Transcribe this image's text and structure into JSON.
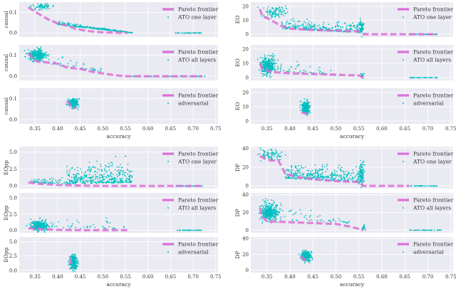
{
  "chart_data": [
    {
      "type": "scatter",
      "group": "causal",
      "ylabel": "causal",
      "xlabel": "",
      "ylim": [
        -0.02,
        0.15
      ],
      "yticks": [
        "0.0",
        "0.1"
      ],
      "ytickvals": [
        0,
        0.1
      ],
      "legend": [
        "Pareto frontier",
        "ATO one layer"
      ],
      "frontier": [
        [
          0.335,
          0.125
        ],
        [
          0.345,
          0.11
        ],
        [
          0.36,
          0.09
        ],
        [
          0.38,
          0.065
        ],
        [
          0.4,
          0.047
        ],
        [
          0.42,
          0.035
        ],
        [
          0.44,
          0.02
        ],
        [
          0.46,
          0.012
        ],
        [
          0.48,
          0.006
        ],
        [
          0.5,
          0.003
        ],
        [
          0.53,
          0.001
        ],
        [
          0.555,
          0
        ]
      ],
      "clusters": [
        {
          "cx": 0.365,
          "cy": 0.125,
          "sx": 0.012,
          "sy": 0.008,
          "n": 60
        },
        {
          "x0": 0.4,
          "x1": 0.565,
          "ylo0": 0.04,
          "yhi0": 0.06,
          "ylo1": 0,
          "yhi1": 0.003,
          "n": 260
        },
        {
          "x0": 0.66,
          "x1": 0.72,
          "ylo0": -0.001,
          "yhi0": 0.001,
          "ylo1": -0.001,
          "yhi1": 0.001,
          "n": 40
        }
      ]
    },
    {
      "type": "scatter",
      "group": "causal",
      "ylabel": "causal",
      "xlabel": "",
      "ylim": [
        -0.02,
        0.15
      ],
      "yticks": [
        "0.0",
        "0.1"
      ],
      "ytickvals": [
        0,
        0.1
      ],
      "legend": [
        "Pareto frontier",
        "ATO all layers"
      ],
      "frontier": [
        [
          0.335,
          0.11
        ],
        [
          0.345,
          0.085
        ],
        [
          0.355,
          0.07
        ],
        [
          0.38,
          0.065
        ],
        [
          0.4,
          0.06
        ],
        [
          0.42,
          0.042
        ],
        [
          0.45,
          0.035
        ],
        [
          0.48,
          0.02
        ],
        [
          0.52,
          0.007
        ],
        [
          0.55,
          0
        ],
        [
          0.72,
          0
        ]
      ],
      "clusters": [
        {
          "cx": 0.355,
          "cy": 0.1,
          "sx": 0.009,
          "sy": 0.013,
          "n": 350
        },
        {
          "x0": 0.38,
          "x1": 0.5,
          "ylo0": 0.06,
          "yhi0": 0.12,
          "ylo1": 0.02,
          "yhi1": 0.04,
          "n": 40
        },
        {
          "x0": 0.56,
          "x1": 0.73,
          "ylo0": -0.001,
          "yhi0": 0.001,
          "ylo1": -0.001,
          "yhi1": 0.001,
          "n": 40
        }
      ]
    },
    {
      "type": "scatter",
      "group": "causal",
      "ylabel": "causal",
      "xlabel": "accuracy",
      "ylim": [
        -0.02,
        0.15
      ],
      "yticks": [
        "0.0",
        "0.1"
      ],
      "ytickvals": [
        0,
        0.1
      ],
      "legend": [
        "Pareto frontier",
        "adversarial"
      ],
      "frontier": [
        [
          0.42,
          0.09
        ],
        [
          0.43,
          0.068
        ],
        [
          0.44,
          0.052
        ]
      ],
      "clusters": [
        {
          "cx": 0.435,
          "cy": 0.08,
          "sx": 0.005,
          "sy": 0.01,
          "n": 300
        }
      ]
    },
    {
      "type": "scatter",
      "group": "EO",
      "ylabel": "EO",
      "xlabel": "",
      "ylim": [
        -2,
        23
      ],
      "yticks": [
        "0",
        "10",
        "20"
      ],
      "ytickvals": [
        0,
        10,
        20
      ],
      "legend": [
        "Pareto frontier",
        "ATO one layer"
      ],
      "frontier": [
        [
          0.335,
          18
        ],
        [
          0.34,
          13
        ],
        [
          0.36,
          10
        ],
        [
          0.38,
          6
        ],
        [
          0.4,
          4
        ],
        [
          0.45,
          3
        ],
        [
          0.5,
          2.5
        ],
        [
          0.55,
          2
        ],
        [
          0.56,
          0
        ],
        [
          0.72,
          0
        ]
      ],
      "clusters": [
        {
          "cx": 0.365,
          "cy": 16,
          "sx": 0.012,
          "sy": 2.5,
          "n": 90
        },
        {
          "x0": 0.38,
          "x1": 0.56,
          "ylo0": 4,
          "yhi0": 12,
          "ylo1": 1,
          "yhi1": 9,
          "n": 300
        },
        {
          "cx": 0.555,
          "cy": 5,
          "sx": 0.003,
          "sy": 3,
          "n": 60
        },
        {
          "x0": 0.66,
          "x1": 0.72,
          "ylo0": -0.1,
          "yhi0": 0.1,
          "ylo1": -0.1,
          "yhi1": 0.1,
          "n": 40
        }
      ]
    },
    {
      "type": "scatter",
      "group": "EO",
      "ylabel": "EO",
      "xlabel": "",
      "ylim": [
        -2,
        23
      ],
      "yticks": [
        "0",
        "10",
        "20"
      ],
      "ytickvals": [
        0,
        10,
        20
      ],
      "legend": [
        "Pareto frontier",
        "ATO all layers"
      ],
      "frontier": [
        [
          0.335,
          10
        ],
        [
          0.34,
          6
        ],
        [
          0.36,
          4
        ],
        [
          0.4,
          3
        ],
        [
          0.45,
          2.5
        ],
        [
          0.5,
          2
        ],
        [
          0.55,
          1.5
        ],
        [
          0.56,
          0
        ]
      ],
      "clusters": [
        {
          "cx": 0.352,
          "cy": 8,
          "sx": 0.008,
          "sy": 3,
          "n": 350
        },
        {
          "x0": 0.37,
          "x1": 0.5,
          "ylo0": 4,
          "yhi0": 16,
          "ylo1": 2,
          "yhi1": 6,
          "n": 50
        },
        {
          "cx": 0.558,
          "cy": 1,
          "sx": 0.002,
          "sy": 1,
          "n": 20
        },
        {
          "x0": 0.66,
          "x1": 0.72,
          "ylo0": -0.1,
          "yhi0": 0.1,
          "ylo1": -0.1,
          "yhi1": 0.1,
          "n": 40
        }
      ]
    },
    {
      "type": "scatter",
      "group": "EO",
      "ylabel": "EO",
      "xlabel": "accuracy",
      "ylim": [
        -2,
        23
      ],
      "yticks": [
        "0",
        "10",
        "20"
      ],
      "ytickvals": [
        0,
        10,
        20
      ],
      "legend": [
        "Pareto frontier",
        "adversarial"
      ],
      "frontier": [
        [
          0.425,
          6
        ],
        [
          0.44,
          5
        ]
      ],
      "clusters": [
        {
          "cx": 0.435,
          "cy": 9,
          "sx": 0.004,
          "sy": 2,
          "n": 300
        }
      ]
    },
    {
      "type": "scatter",
      "group": "EOpp",
      "ylabel": "EOpp",
      "xlabel": "",
      "ylim": [
        -0.4,
        5.8
      ],
      "yticks": [
        "0.0",
        "2.5",
        "5.0"
      ],
      "ytickvals": [
        0,
        2.5,
        5
      ],
      "legend": [
        "Pareto frontier",
        "ATO one layer"
      ],
      "frontier": [
        [
          0.335,
          0.5
        ],
        [
          0.36,
          0.3
        ],
        [
          0.4,
          0.15
        ],
        [
          0.45,
          0.05
        ],
        [
          0.5,
          0
        ],
        [
          0.72,
          0
        ]
      ],
      "clusters": [
        {
          "x0": 0.34,
          "x1": 0.42,
          "ylo0": 0.5,
          "yhi0": 1,
          "ylo1": 0.3,
          "yhi1": 2,
          "n": 60
        },
        {
          "x0": 0.42,
          "x1": 0.565,
          "ylo0": 0.3,
          "yhi0": 3.5,
          "ylo1": 0.5,
          "yhi1": 4.8,
          "n": 380
        },
        {
          "x0": 0.66,
          "x1": 0.72,
          "ylo0": -0.02,
          "yhi0": 0.02,
          "ylo1": -0.02,
          "yhi1": 0.02,
          "n": 40
        }
      ]
    },
    {
      "type": "scatter",
      "group": "EOpp",
      "ylabel": "EOpp",
      "xlabel": "",
      "ylim": [
        -0.4,
        5.8
      ],
      "yticks": [
        "0.0",
        "2.5",
        "5.0"
      ],
      "ytickvals": [
        0,
        2.5,
        5
      ],
      "legend": [
        "Pareto frontier",
        "ATO all layers"
      ],
      "frontier": [
        [
          0.335,
          0.3
        ],
        [
          0.36,
          0.15
        ],
        [
          0.4,
          0.05
        ],
        [
          0.45,
          0
        ],
        [
          0.56,
          0
        ]
      ],
      "clusters": [
        {
          "cx": 0.36,
          "cy": 0.7,
          "sx": 0.01,
          "sy": 0.4,
          "n": 300
        },
        {
          "x0": 0.38,
          "x1": 0.55,
          "ylo0": 0.3,
          "yhi0": 2,
          "ylo1": 0.2,
          "yhi1": 2.5,
          "n": 40
        },
        {
          "x0": 0.66,
          "x1": 0.72,
          "ylo0": -0.02,
          "yhi0": 0.02,
          "ylo1": -0.02,
          "yhi1": 0.02,
          "n": 40
        }
      ]
    },
    {
      "type": "scatter",
      "group": "EOpp",
      "ylabel": "EOpp",
      "xlabel": "accuracy",
      "ylim": [
        -0.4,
        5.8
      ],
      "yticks": [
        "0.0",
        "2.5",
        "5.0"
      ],
      "ytickvals": [
        0,
        2.5,
        5
      ],
      "legend": [
        "Pareto frontier",
        "adversarial"
      ],
      "frontier": [
        [
          0.428,
          2.2
        ],
        [
          0.43,
          1.2
        ],
        [
          0.432,
          0.4
        ]
      ],
      "clusters": [
        {
          "cx": 0.435,
          "cy": 1.4,
          "sx": 0.004,
          "sy": 0.6,
          "n": 300
        }
      ]
    },
    {
      "type": "scatter",
      "group": "DP",
      "ylabel": "DP",
      "xlabel": "",
      "ylim": [
        -3,
        42
      ],
      "yticks": [
        "0",
        "20",
        "40"
      ],
      "ytickvals": [
        0,
        20,
        40
      ],
      "legend": [
        "Pareto frontier",
        "ATO one layer"
      ],
      "frontier": [
        [
          0.335,
          32
        ],
        [
          0.345,
          29
        ],
        [
          0.36,
          27
        ],
        [
          0.375,
          27
        ],
        [
          0.39,
          13
        ],
        [
          0.41,
          10
        ],
        [
          0.45,
          7
        ],
        [
          0.5,
          5
        ],
        [
          0.55,
          4
        ],
        [
          0.56,
          0
        ],
        [
          0.66,
          0
        ]
      ],
      "clusters": [
        {
          "cx": 0.36,
          "cy": 33,
          "sx": 0.012,
          "sy": 3,
          "n": 80
        },
        {
          "x0": 0.39,
          "x1": 0.56,
          "ylo0": 8,
          "yhi0": 25,
          "ylo1": 4,
          "yhi1": 25,
          "n": 380
        },
        {
          "cx": 0.555,
          "cy": 12,
          "sx": 0.003,
          "sy": 7,
          "n": 90
        },
        {
          "x0": 0.66,
          "x1": 0.72,
          "ylo0": -0.2,
          "yhi0": 0.2,
          "ylo1": -0.2,
          "yhi1": 0.2,
          "n": 40
        }
      ]
    },
    {
      "type": "scatter",
      "group": "DP",
      "ylabel": "DP",
      "xlabel": "",
      "ylim": [
        -3,
        42
      ],
      "yticks": [
        "0",
        "20",
        "40"
      ],
      "ytickvals": [
        0,
        20,
        40
      ],
      "legend": [
        "Pareto frontier",
        "ATO all layers"
      ],
      "frontier": [
        [
          0.335,
          25
        ],
        [
          0.34,
          15
        ],
        [
          0.35,
          10
        ],
        [
          0.4,
          9
        ],
        [
          0.45,
          8
        ],
        [
          0.5,
          7
        ],
        [
          0.53,
          4
        ],
        [
          0.56,
          0
        ]
      ],
      "clusters": [
        {
          "cx": 0.355,
          "cy": 20,
          "sx": 0.009,
          "sy": 5,
          "n": 380
        },
        {
          "x0": 0.37,
          "x1": 0.53,
          "ylo0": 12,
          "yhi0": 35,
          "ylo1": 8,
          "yhi1": 15,
          "n": 50
        },
        {
          "cx": 0.56,
          "cy": 2,
          "sx": 0.002,
          "sy": 2,
          "n": 20
        },
        {
          "x0": 0.66,
          "x1": 0.73,
          "ylo0": -0.2,
          "yhi0": 0.2,
          "ylo1": -0.2,
          "yhi1": 0.2,
          "n": 40
        }
      ]
    },
    {
      "type": "scatter",
      "group": "DP",
      "ylabel": "DP",
      "xlabel": "accuracy",
      "ylim": [
        -3,
        42
      ],
      "yticks": [
        "0",
        "20",
        "40"
      ],
      "ytickvals": [
        0,
        20,
        40
      ],
      "legend": [
        "Pareto frontier",
        "adversarial"
      ],
      "frontier": [
        [
          0.425,
          18
        ],
        [
          0.43,
          14
        ],
        [
          0.44,
          11
        ]
      ],
      "clusters": [
        {
          "cx": 0.435,
          "cy": 18,
          "sx": 0.005,
          "sy": 3,
          "n": 300
        }
      ]
    }
  ],
  "xticks": [
    "0.35",
    "0.40",
    "0.45",
    "0.50",
    "0.55",
    "0.60",
    "0.65",
    "0.70",
    "0.75"
  ],
  "xtickvals": [
    0.35,
    0.4,
    0.45,
    0.5,
    0.55,
    0.6,
    0.65,
    0.7,
    0.75
  ],
  "xlim": [
    0.315,
    0.755
  ],
  "colors": {
    "frontier": "#da70d6",
    "scatter": "#00bfbf",
    "bg": "#eaeaf2",
    "grid": "#ffffff"
  }
}
